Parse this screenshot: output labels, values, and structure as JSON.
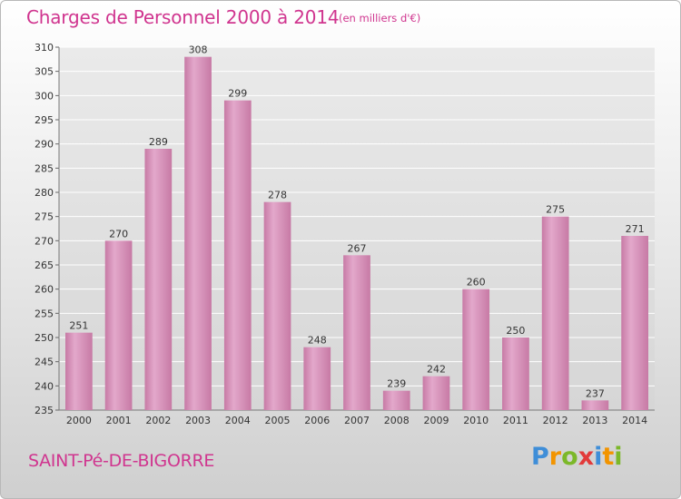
{
  "chart_data": {
    "type": "bar",
    "title": "Charges de Personnel 2000 à 2014",
    "subtitle": "(en milliers d'€)",
    "categories": [
      "2000",
      "2001",
      "2002",
      "2003",
      "2004",
      "2005",
      "2006",
      "2007",
      "2008",
      "2009",
      "2010",
      "2011",
      "2012",
      "2013",
      "2014"
    ],
    "values": [
      251,
      270,
      289,
      308,
      299,
      278,
      248,
      267,
      239,
      242,
      260,
      250,
      275,
      237,
      271
    ],
    "ylim": [
      235,
      310
    ],
    "ytick_step": 5,
    "grid": true,
    "bar_color": "#d98fba"
  },
  "footer": {
    "town": "SAINT-Pé-DE-BIGORRE",
    "logo_letters": [
      "P",
      "r",
      "o",
      "x",
      "i",
      "t",
      "i"
    ]
  }
}
